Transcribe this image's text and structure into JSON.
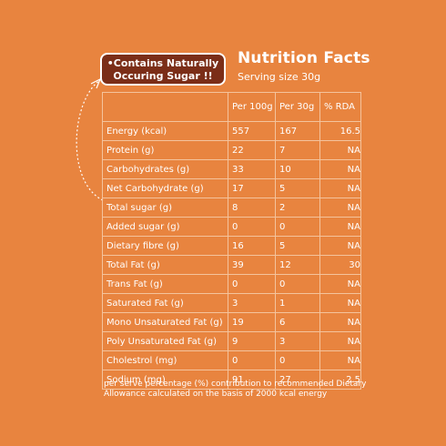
{
  "callout": {
    "line1": "•Contains Naturally",
    "line2": "Occuring Sugar !!"
  },
  "title": "Nutrition Facts",
  "serving": "Serving size 30g",
  "table": {
    "headers": [
      "",
      "Per 100g",
      "Per 30g",
      "% RDA"
    ],
    "rows": [
      [
        "Energy (kcal)",
        "557",
        "167",
        "16.5"
      ],
      [
        "Protein (g)",
        "22",
        "7",
        "NA"
      ],
      [
        "Carbohydrates (g)",
        "33",
        "10",
        "NA"
      ],
      [
        "Net Carbohydrate (g)",
        "17",
        "5",
        "NA"
      ],
      [
        " Total sugar (g)",
        "8",
        "2",
        "NA"
      ],
      [
        "Added sugar (g)",
        "0",
        "0",
        "NA"
      ],
      [
        "Dietary fibre (g)",
        "16",
        "5",
        "NA"
      ],
      [
        "Total Fat (g)",
        "39",
        "12",
        "30"
      ],
      [
        "Trans Fat (g)",
        "0",
        "0",
        "NA"
      ],
      [
        "Saturated Fat (g)",
        "3",
        "1",
        "NA"
      ],
      [
        "Mono Unsaturated Fat (g)",
        "19",
        "6",
        "NA"
      ],
      [
        "Poly Unsaturated Fat (g)",
        "9",
        "3",
        "NA"
      ],
      [
        "Cholestrol (mg)",
        "0",
        "0",
        "NA"
      ],
      [
        "Sodium (mg)",
        "91",
        "27",
        "2.5"
      ]
    ]
  },
  "footnote": "per serve percentage (%) contribution to recommended Dietary Allowance calculated on the basis of 2000 kcal energy",
  "colors": {
    "background": "#e8843f",
    "callout": "#7b2e18",
    "grid": "#f4c39c"
  }
}
